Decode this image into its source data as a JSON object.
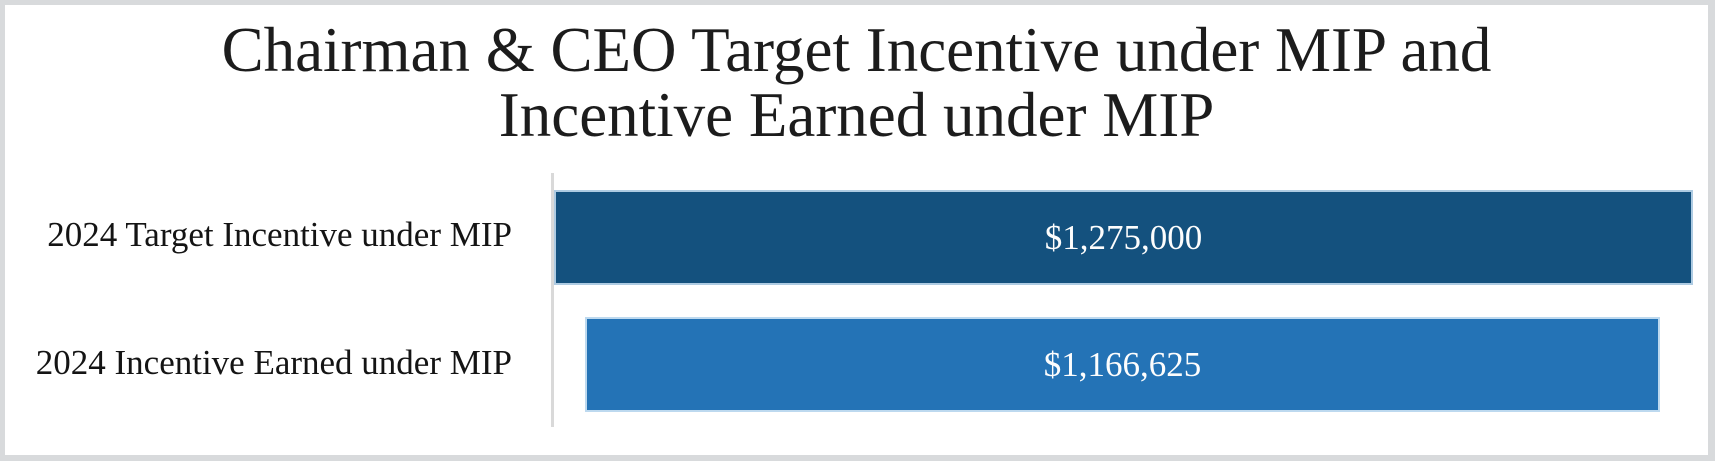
{
  "title": {
    "line1": "Chairman & CEO Target Incentive under MIP and",
    "line2": "Incentive Earned under MIP"
  },
  "chart_data": {
    "type": "bar",
    "orientation": "horizontal",
    "title": "Chairman & CEO Target Incentive under MIP and Incentive Earned under MIP",
    "categories": [
      "2024 Target Incentive under MIP",
      "2024 Incentive Earned under MIP"
    ],
    "values": [
      1275000,
      1166625
    ],
    "value_labels": [
      "$1,275,000",
      "$1,166,625"
    ],
    "series": [
      {
        "name": "2024 Target Incentive under MIP",
        "value": 1275000,
        "label": "$1,275,000",
        "color": "#14517E"
      },
      {
        "name": "2024 Incentive Earned under MIP",
        "value": 1166625,
        "label": "$1,166,625",
        "color": "#2473B6"
      }
    ],
    "bar_colors": [
      "#14517E",
      "#2473B6"
    ],
    "value_label_color": "#FDFDFD",
    "axis_line_color": "#D9D9D9",
    "background_color": "#FFFFFF",
    "frame_border_color": "#D8DADC",
    "legend": "none",
    "gridlines": false,
    "xlabel": "",
    "ylabel": ""
  }
}
